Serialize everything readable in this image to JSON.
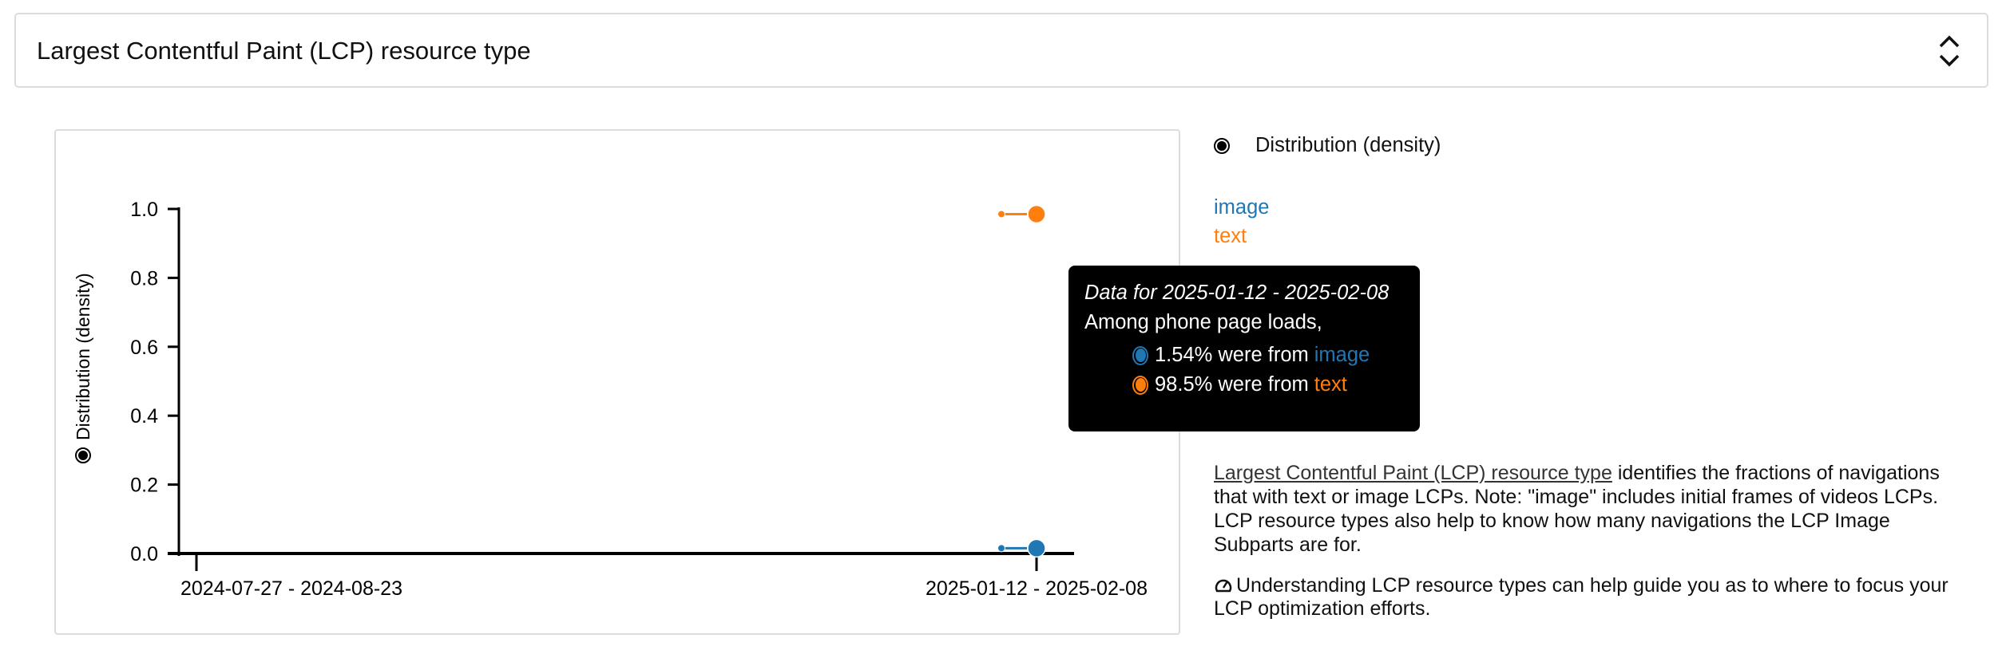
{
  "header": {
    "title": "Largest Contentful Paint (LCP) resource type",
    "toggle_icon": "chevron-up-down-icon"
  },
  "colors": {
    "image": "#1f77b4",
    "text": "#ff7f0e"
  },
  "chart_data": {
    "type": "line",
    "ylabel": "Distribution (density)",
    "ylim": [
      0,
      1
    ],
    "yticks": [
      "0.0",
      "0.2",
      "0.4",
      "0.6",
      "0.8",
      "1.0"
    ],
    "xticks": [
      "2024-07-27 - 2024-08-23",
      "2025-01-12 - 2025-02-08"
    ],
    "series": [
      {
        "name": "image",
        "color": "#1f77b4",
        "points": [
          {
            "x": "2025-01-12 - 2025-02-08",
            "y": 0.0154
          }
        ]
      },
      {
        "name": "text",
        "color": "#ff7f0e",
        "points": [
          {
            "x": "2025-01-12 - 2025-02-08",
            "y": 0.985
          }
        ]
      }
    ],
    "grid": false
  },
  "right": {
    "radio_label": "Distribution (density)",
    "legend": [
      "image",
      "text"
    ],
    "desc_link": "Largest Contentful Paint (LCP) resource type",
    "desc_rest": " identifies the fractions of navigations that with text or image LCPs. Note: \"image\" includes initial frames of videos LCPs. LCP resource types also help to know how many navigations the LCP Image Subparts are for.",
    "tip_icon": "gauge-icon",
    "tip": "Understanding LCP resource types can help guide you as to where to focus your LCP optimization efforts."
  },
  "tooltip": {
    "title": "Data for 2025-01-12 - 2025-02-08",
    "subtitle": "Among phone page loads,",
    "rows": [
      {
        "value": "1.54% were from ",
        "label": "image"
      },
      {
        "value": "98.5% were from ",
        "label": "text"
      }
    ]
  }
}
